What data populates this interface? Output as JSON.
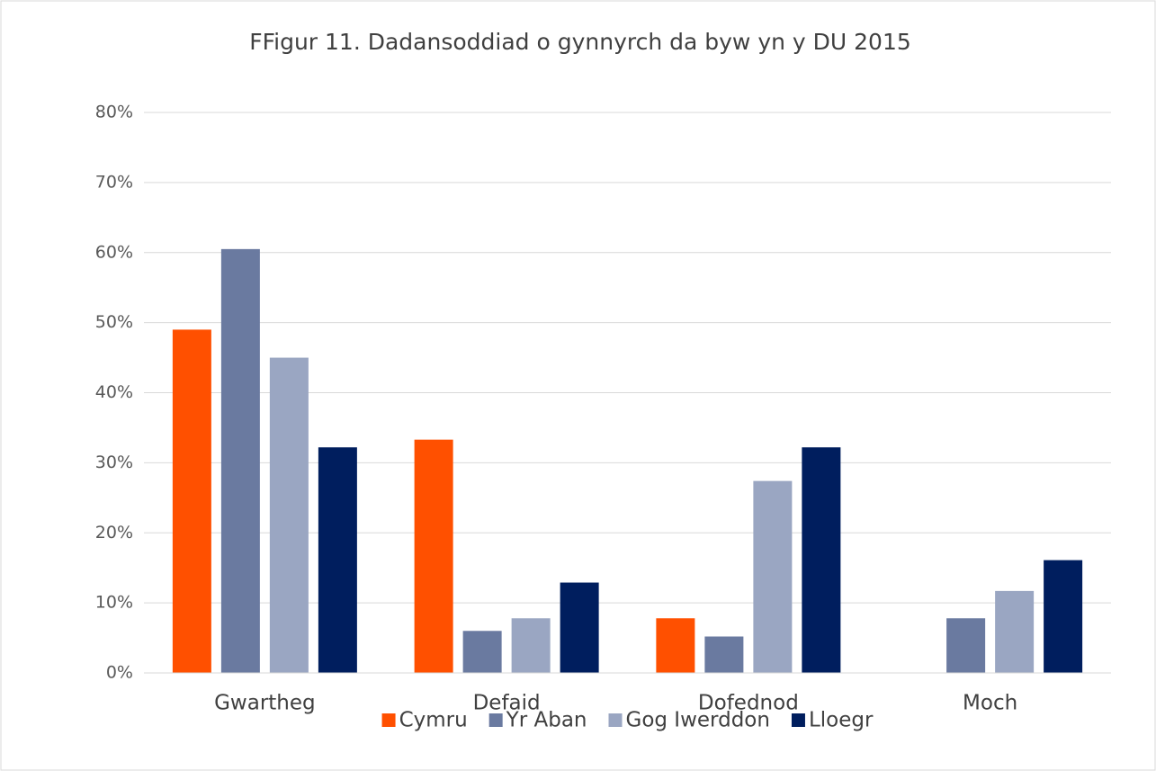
{
  "chart_data": {
    "type": "bar",
    "title": "FFigur 11. Dadansoddiad o gynnyrch da byw yn y DU 2015",
    "categories": [
      "Gwartheg",
      "Defaid",
      "Dofednod",
      "Moch"
    ],
    "series": [
      {
        "name": "Cymru",
        "color": "#ff5000",
        "values": [
          49,
          33.3,
          7.8,
          0
        ]
      },
      {
        "name": "Yr Aban",
        "color": "#6a7aa0",
        "values": [
          60.5,
          6,
          5.2,
          7.8
        ]
      },
      {
        "name": "Gog Iwerddon",
        "color": "#9aa6c2",
        "values": [
          45,
          7.8,
          27.4,
          11.7
        ]
      },
      {
        "name": "Lloegr",
        "color": "#001e5e",
        "values": [
          32.2,
          12.9,
          32.2,
          16.1
        ]
      }
    ],
    "ylim": [
      0,
      80
    ],
    "yticks": [
      {
        "value": 0,
        "label": "0%"
      },
      {
        "value": 10,
        "label": "10%"
      },
      {
        "value": 20,
        "label": "20%"
      },
      {
        "value": 30,
        "label": "30%"
      },
      {
        "value": 40,
        "label": "40%"
      },
      {
        "value": 50,
        "label": "50%"
      },
      {
        "value": 60,
        "label": "60%"
      },
      {
        "value": 70,
        "label": "70%"
      },
      {
        "value": 80,
        "label": "80%"
      }
    ],
    "grid": true,
    "legend": "bottom"
  }
}
